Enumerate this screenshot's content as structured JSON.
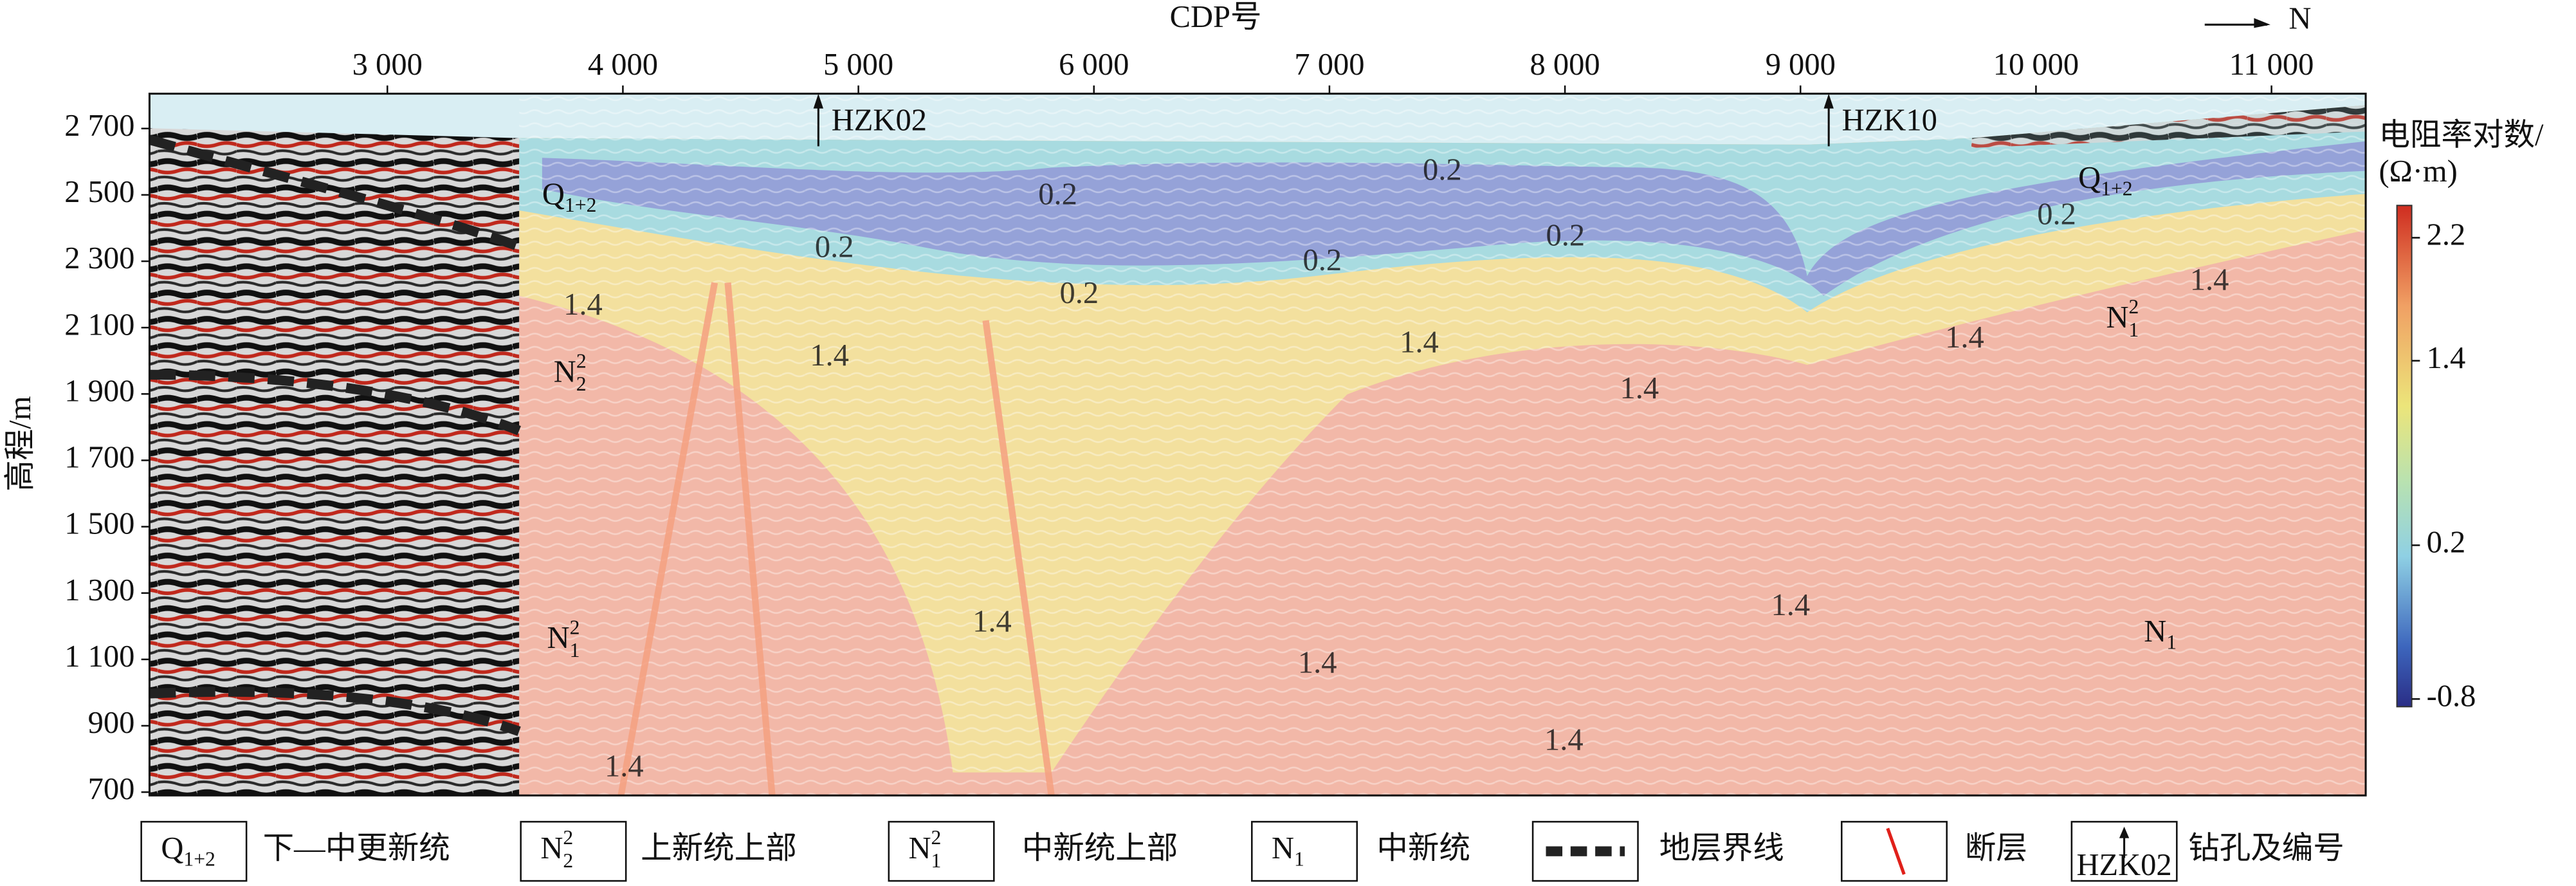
{
  "chart_data": {
    "type": "section",
    "x_label": "CDP号",
    "y_label": "高程/m",
    "north": "N",
    "xlim": [
      1990,
      11400
    ],
    "xticks": [
      {
        "value": 3000,
        "label": "3 000"
      },
      {
        "value": 4000,
        "label": "4 000"
      },
      {
        "value": 5000,
        "label": "5 000"
      },
      {
        "value": 6000,
        "label": "6 000"
      },
      {
        "value": 7000,
        "label": "7 000"
      },
      {
        "value": 8000,
        "label": "8 000"
      },
      {
        "value": 9000,
        "label": "9 000"
      },
      {
        "value": 10000,
        "label": "10 000"
      },
      {
        "value": 11000,
        "label": "11 000"
      }
    ],
    "ylim": [
      690,
      2805
    ],
    "yticks": [
      700,
      900,
      {
        "value": 1100,
        "label": "1 100"
      },
      {
        "value": 1300,
        "label": "1 300"
      },
      {
        "value": 1500,
        "label": "1 500"
      },
      {
        "value": 1700,
        "label": "1 700"
      },
      {
        "value": 1900,
        "label": "1 900"
      },
      {
        "value": 2100,
        "label": "2 100"
      },
      {
        "value": 2300,
        "label": "2 300"
      },
      {
        "value": 2500,
        "label": "2 500"
      },
      {
        "value": 2700,
        "label": "2 700"
      }
    ],
    "colorbar": {
      "title": "电阻率对数/",
      "unit": "(Ω·m)",
      "lim": [
        -0.85,
        2.41
      ],
      "ticks": [
        -0.8,
        0.2,
        1.4,
        2.2
      ]
    },
    "boreholes": [
      {
        "label": "HZK02",
        "cdp": 4830
      },
      {
        "label": "HZK10",
        "cdp": 9120
      }
    ],
    "formations": [
      {
        "text": "Q",
        "sub": "1+2"
      },
      {
        "text": "Q",
        "sub": "1+2"
      },
      {
        "text": "N",
        "sub": "2",
        "sup": "2"
      },
      {
        "text": "N",
        "sub": "1",
        "sup": "2"
      },
      {
        "text": "N",
        "sub": "1",
        "sup": "2"
      },
      {
        "text": "N",
        "sub": "1"
      }
    ],
    "contour_labels": [
      "0.2",
      "0.2",
      "0.2",
      "0.2",
      "0.2",
      "0.2",
      "0.2",
      "1.4",
      "1.4",
      "1.4",
      "1.4",
      "1.4",
      "1.4",
      "1.4",
      "1.4",
      "1.4",
      "1.4",
      "1.4"
    ],
    "legend": [
      {
        "symbol": {
          "text": "Q",
          "sub": "1+2"
        },
        "label": "下—中更新统"
      },
      {
        "symbol": {
          "text": "N",
          "sub": "2",
          "sup": "2"
        },
        "label": "上新统上部"
      },
      {
        "symbol": {
          "text": "N",
          "sub": "1",
          "sup": "2"
        },
        "label": "中新统上部"
      },
      {
        "symbol": {
          "text": "N",
          "sub": "1"
        },
        "label": "中新统"
      },
      {
        "label": "地层界线"
      },
      {
        "label": "断层"
      },
      {
        "symbol": {
          "text": "HZK02"
        },
        "label": "钻孔及编号"
      }
    ]
  }
}
